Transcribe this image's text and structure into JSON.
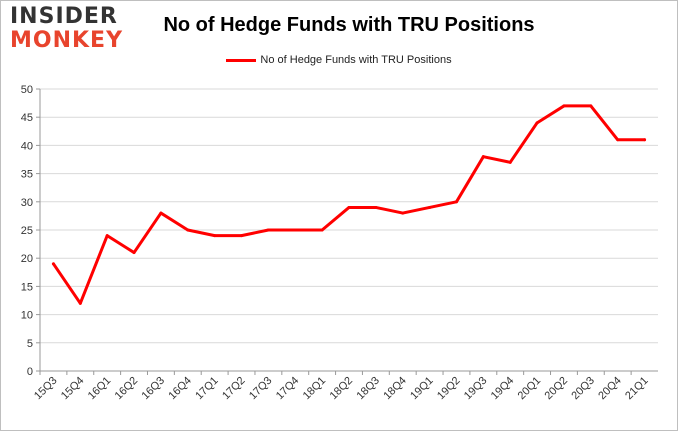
{
  "logo": {
    "line1": "INSIDER",
    "line2": "MONKEY"
  },
  "chart_data": {
    "type": "line",
    "title": "No of Hedge Funds with TRU Positions",
    "xlabel": "",
    "ylabel": "",
    "legend": "top-center",
    "grid": true,
    "ylim": [
      0,
      50
    ],
    "yticks": [
      0,
      5,
      10,
      15,
      20,
      25,
      30,
      35,
      40,
      45,
      50
    ],
    "categories": [
      "15Q3",
      "15Q4",
      "16Q1",
      "16Q2",
      "16Q3",
      "16Q4",
      "17Q1",
      "17Q2",
      "17Q3",
      "17Q4",
      "18Q1",
      "18Q2",
      "18Q3",
      "18Q4",
      "19Q1",
      "19Q2",
      "19Q3",
      "19Q4",
      "20Q1",
      "20Q2",
      "20Q3",
      "20Q4",
      "21Q1"
    ],
    "series": [
      {
        "name": "No of Hedge Funds with TRU Positions",
        "color": "#ff0000",
        "values": [
          19,
          12,
          24,
          21,
          28,
          25,
          24,
          24,
          25,
          25,
          25,
          29,
          29,
          28,
          29,
          30,
          38,
          37,
          44,
          47,
          47,
          41,
          41
        ]
      }
    ]
  }
}
